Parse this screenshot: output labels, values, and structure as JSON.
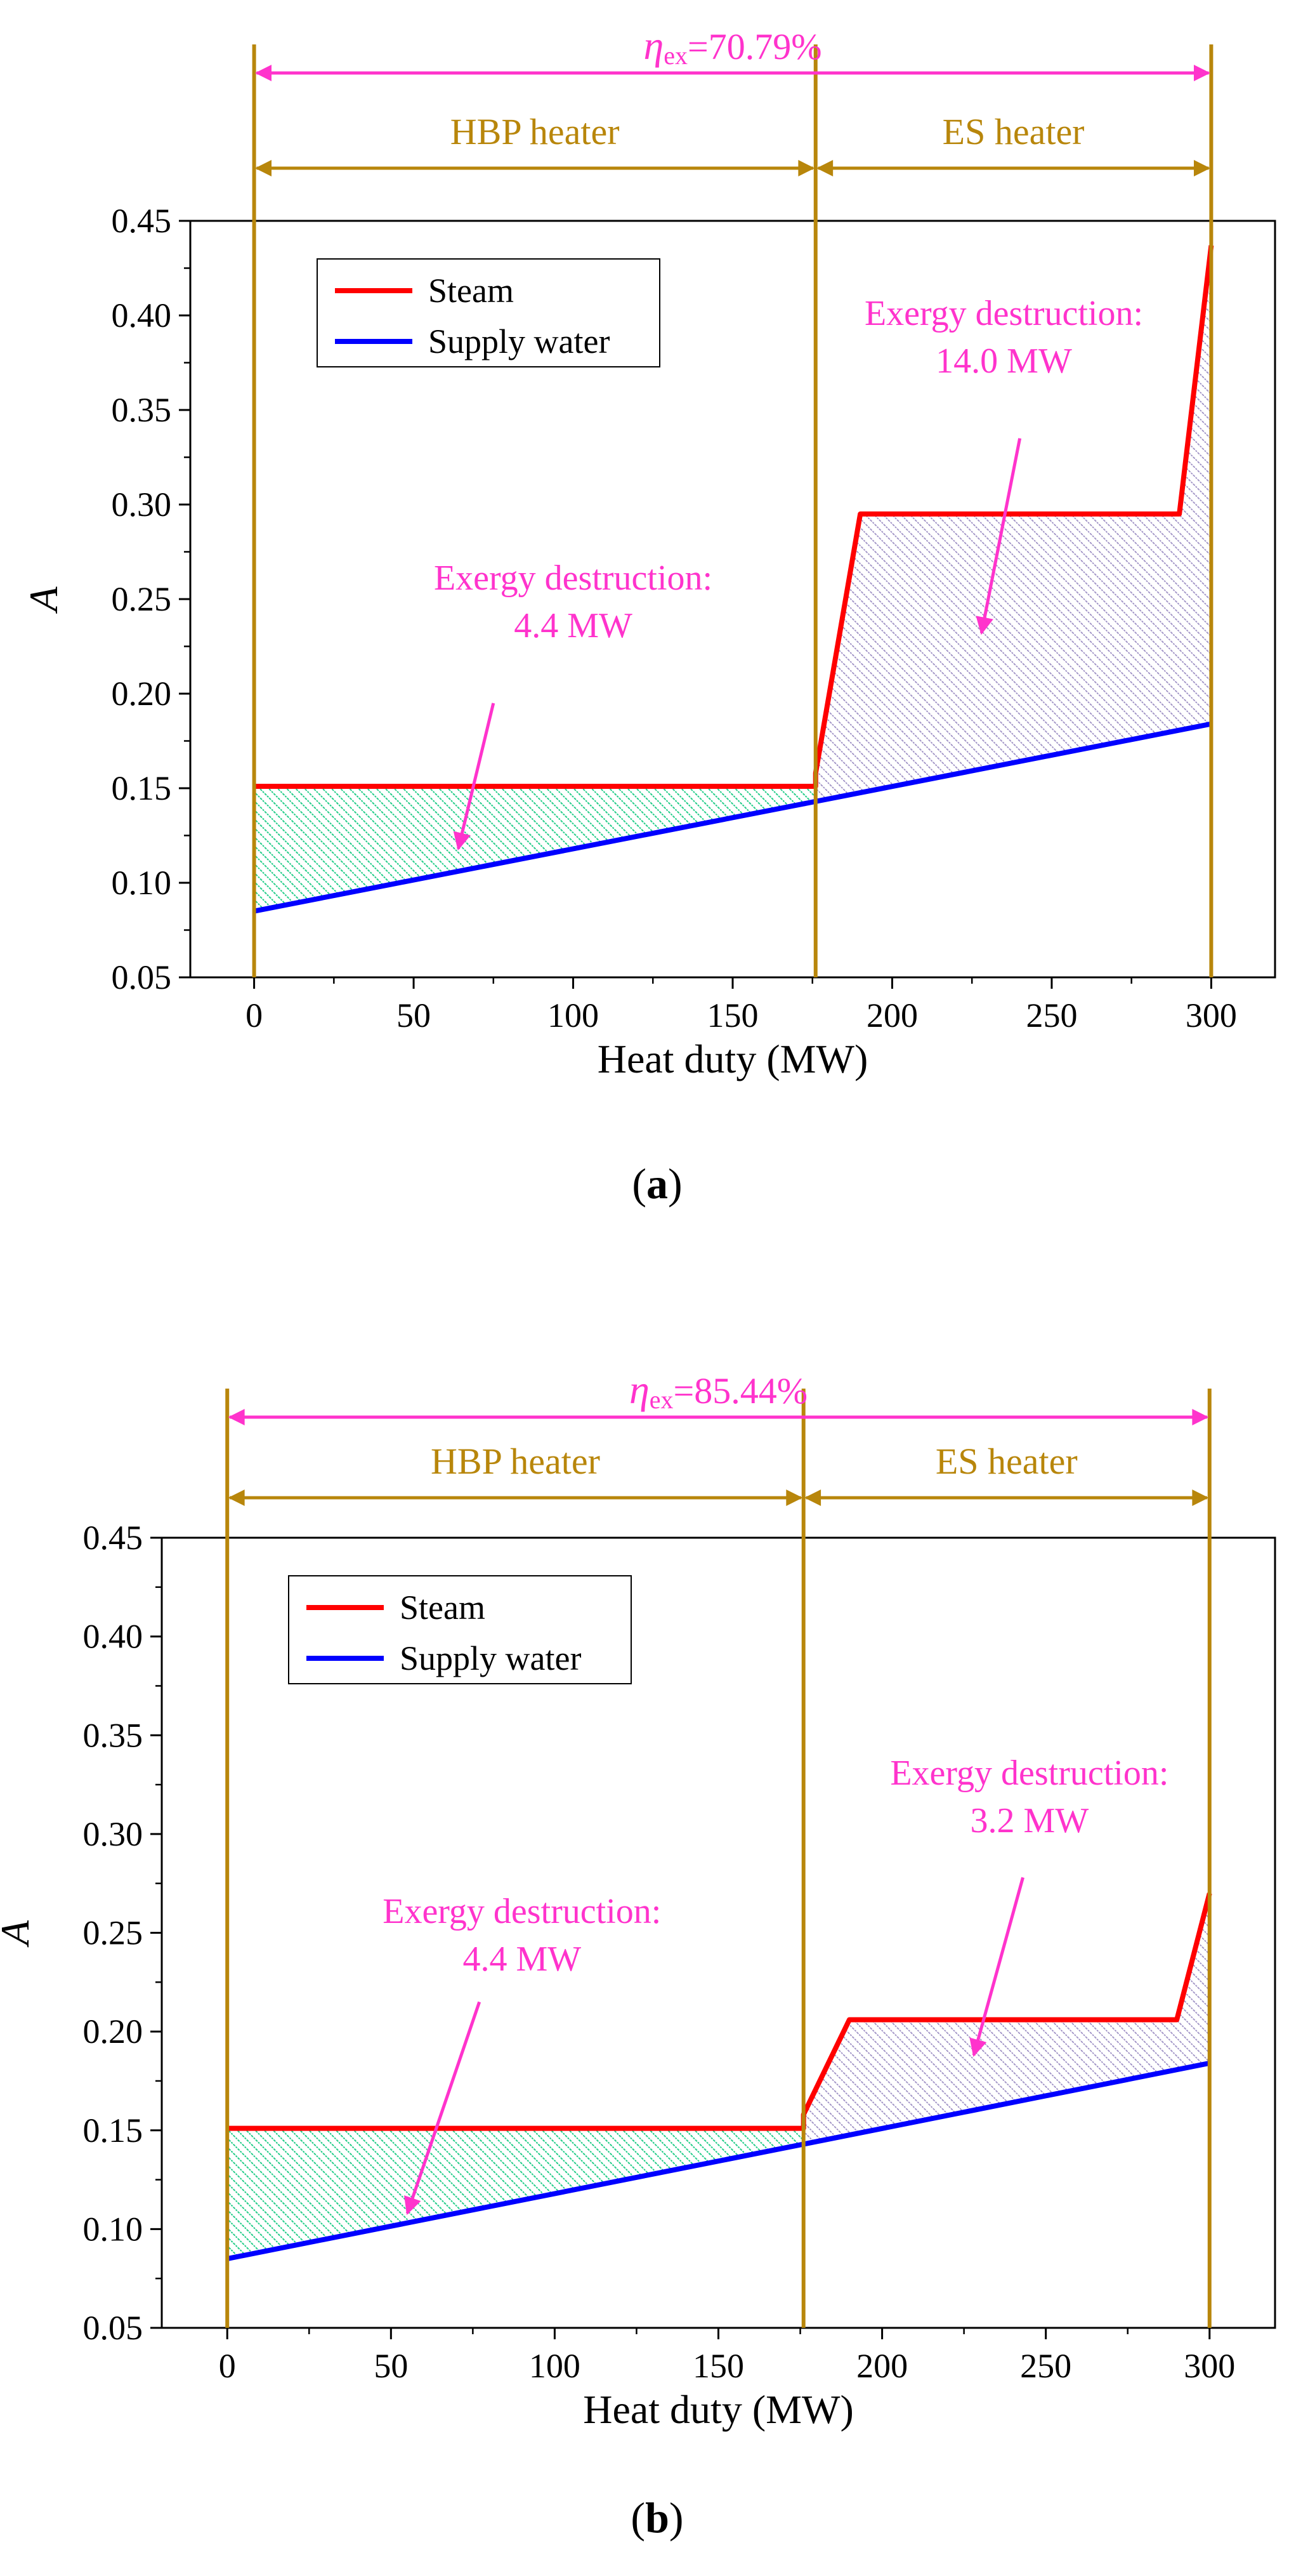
{
  "colors": {
    "steam": "#ff0000",
    "supply_water": "#0000ff",
    "annotation": "#ff33cc",
    "boundary": "#b8860b",
    "green_hatch": "#22cc88",
    "purple_hatch": "#9a8cc2",
    "axis": "#000000"
  },
  "chart_data": [
    {
      "type": "line",
      "panel_label": "a",
      "xlabel": "Heat duty (MW)",
      "ylabel": "A",
      "xlim": [
        -20,
        320
      ],
      "ylim": [
        0.05,
        0.45
      ],
      "xticks": [
        0,
        50,
        100,
        150,
        200,
        250,
        300
      ],
      "yticks": [
        0.05,
        0.1,
        0.15,
        0.2,
        0.25,
        0.3,
        0.35,
        0.4,
        0.45
      ],
      "efficiency": {
        "symbol": "η",
        "subscript": "ex",
        "text": "=70.79%"
      },
      "sections": [
        {
          "label": "HBP heater",
          "from": 0,
          "to": 176
        },
        {
          "label": "ES heater",
          "from": 176,
          "to": 300
        }
      ],
      "legend": {
        "position": "top-left",
        "entries": [
          "Steam",
          "Supply water"
        ]
      },
      "series": [
        {
          "name": "Steam",
          "x": [
            0,
            176,
            176,
            190,
            290,
            300
          ],
          "y": [
            0.151,
            0.151,
            0.158,
            0.295,
            0.295,
            0.437
          ]
        },
        {
          "name": "Supply water",
          "x": [
            0,
            176,
            300
          ],
          "y": [
            0.085,
            0.143,
            0.184
          ]
        }
      ],
      "annotations": [
        {
          "line1": "Exergy destruction:",
          "line2": "4.4 MW",
          "text_at": [
            100,
            0.255
          ],
          "arrow_from": [
            75,
            0.195
          ],
          "arrow_to": [
            64,
            0.118
          ]
        },
        {
          "line1": "Exergy destruction:",
          "line2": "14.0 MW",
          "text_at": [
            235,
            0.395
          ],
          "arrow_from": [
            240,
            0.335
          ],
          "arrow_to": [
            228,
            0.232
          ]
        }
      ]
    },
    {
      "type": "line",
      "panel_label": "b",
      "xlabel": "Heat duty (MW)",
      "ylabel": "A",
      "xlim": [
        -20,
        320
      ],
      "ylim": [
        0.05,
        0.45
      ],
      "xticks": [
        0,
        50,
        100,
        150,
        200,
        250,
        300
      ],
      "yticks": [
        0.05,
        0.1,
        0.15,
        0.2,
        0.25,
        0.3,
        0.35,
        0.4,
        0.45
      ],
      "efficiency": {
        "symbol": "η",
        "subscript": "ex",
        "text": "=85.44%"
      },
      "sections": [
        {
          "label": "HBP heater",
          "from": 0,
          "to": 176
        },
        {
          "label": "ES heater",
          "from": 176,
          "to": 300
        }
      ],
      "legend": {
        "position": "top-left",
        "entries": [
          "Steam",
          "Supply water"
        ]
      },
      "series": [
        {
          "name": "Steam",
          "x": [
            0,
            176,
            176,
            190,
            290,
            300
          ],
          "y": [
            0.151,
            0.151,
            0.158,
            0.206,
            0.206,
            0.27
          ]
        },
        {
          "name": "Supply water",
          "x": [
            0,
            176,
            300
          ],
          "y": [
            0.085,
            0.143,
            0.184
          ]
        }
      ],
      "annotations": [
        {
          "line1": "Exergy destruction:",
          "line2": "4.4 MW",
          "text_at": [
            90,
            0.255
          ],
          "arrow_from": [
            77,
            0.215
          ],
          "arrow_to": [
            55,
            0.108
          ]
        },
        {
          "line1": "Exergy destruction:",
          "line2": "3.2 MW",
          "text_at": [
            245,
            0.325
          ],
          "arrow_from": [
            243,
            0.278
          ],
          "arrow_to": [
            228,
            0.188
          ]
        }
      ]
    }
  ]
}
